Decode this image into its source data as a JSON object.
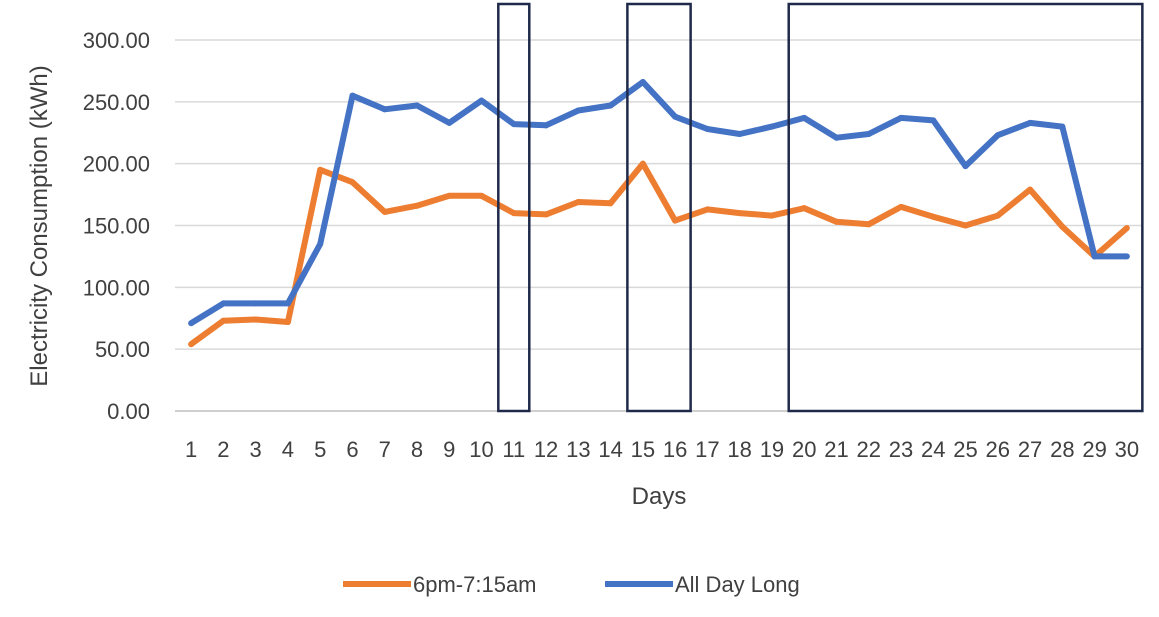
{
  "chart_data": {
    "type": "line",
    "title": "",
    "xlabel": "Days",
    "ylabel": "Electricity Consumption (kWh)",
    "ylim": [
      0,
      300
    ],
    "yticks": [
      "0.00",
      "50.00",
      "100.00",
      "150.00",
      "200.00",
      "250.00",
      "300.00"
    ],
    "grid": true,
    "legend_position": "bottom",
    "categories": [
      "1",
      "2",
      "3",
      "4",
      "5",
      "6",
      "7",
      "8",
      "9",
      "10",
      "11",
      "12",
      "13",
      "14",
      "15",
      "16",
      "17",
      "18",
      "19",
      "20",
      "21",
      "22",
      "23",
      "24",
      "25",
      "26",
      "27",
      "28",
      "29",
      "30"
    ],
    "series": [
      {
        "name": "6pm-7:15am",
        "color": "#ED7D31",
        "values": [
          54,
          73,
          74,
          72,
          195,
          185,
          161,
          166,
          174,
          174,
          160,
          159,
          169,
          168,
          200,
          154,
          163,
          160,
          158,
          164,
          153,
          151,
          165,
          157,
          150,
          158,
          179,
          149,
          125,
          148
        ]
      },
      {
        "name": "All Day Long",
        "color": "#4472C4",
        "values": [
          71,
          87,
          87,
          87,
          135,
          255,
          244,
          247,
          233,
          251,
          232,
          231,
          243,
          247,
          266,
          238,
          228,
          224,
          230,
          237,
          221,
          224,
          237,
          235,
          198,
          223,
          233,
          230,
          125,
          125
        ]
      }
    ],
    "highlight_ranges": [
      {
        "from": "11",
        "to": "11"
      },
      {
        "from": "15",
        "to": "16"
      },
      {
        "from": "20",
        "to": "30"
      }
    ]
  }
}
